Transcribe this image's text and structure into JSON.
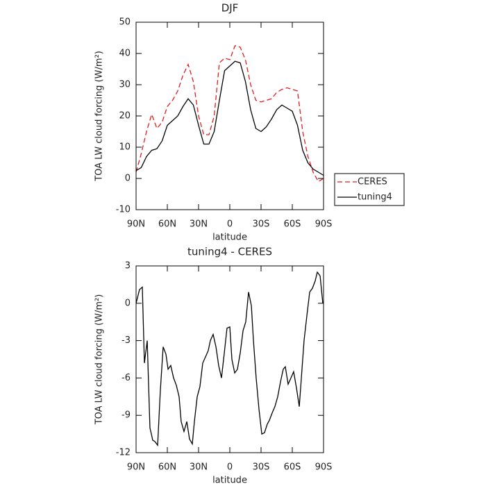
{
  "chart_data": [
    {
      "type": "line",
      "title": "DJF",
      "xlabel": "latitude",
      "ylabel": "TOA LW cloud forcing (W/m²)",
      "x": [
        90,
        85,
        80,
        75,
        70,
        65,
        60,
        55,
        50,
        45,
        40,
        35,
        30,
        25,
        20,
        15,
        10,
        5,
        0,
        -5,
        -10,
        -15,
        -20,
        -25,
        -30,
        -35,
        -40,
        -45,
        -50,
        -55,
        -60,
        -65,
        -70,
        -75,
        -80,
        -85,
        -90
      ],
      "series": [
        {
          "name": "CERES",
          "color": "#e31a1c",
          "style": "dashed",
          "values": [
            2,
            8,
            15,
            20.5,
            16,
            18,
            23,
            25,
            28,
            33,
            36.5,
            31,
            20,
            14,
            14,
            20,
            37,
            38.5,
            38,
            42.5,
            42,
            38,
            30,
            25,
            24.5,
            25,
            25.5,
            27.5,
            28.5,
            29,
            28.5,
            28,
            15,
            7,
            2,
            -1,
            0
          ]
        },
        {
          "name": "tuning4",
          "color": "#000000",
          "style": "solid",
          "values": [
            2.5,
            3.5,
            7,
            9,
            9.5,
            12,
            17,
            18.5,
            20,
            23,
            25.5,
            23.5,
            17,
            11,
            11,
            15,
            25,
            34.5,
            36,
            37.5,
            37,
            31,
            22,
            16,
            15,
            16.5,
            19,
            22,
            23.5,
            22.5,
            21.5,
            17,
            9,
            5,
            3,
            2,
            1
          ]
        }
      ],
      "xlim": [
        90,
        -90
      ],
      "xticks": [
        {
          "value": 90,
          "label": "90N"
        },
        {
          "value": 60,
          "label": "60N"
        },
        {
          "value": 30,
          "label": "30N"
        },
        0,
        {
          "value": -30,
          "label": "30S"
        },
        {
          "value": -60,
          "label": "60S"
        },
        {
          "value": -90,
          "label": "90S"
        }
      ],
      "ylim": [
        -10,
        50
      ],
      "yticks": [
        -10,
        0,
        10,
        20,
        30,
        40,
        50
      ],
      "legend": "outside-right"
    },
    {
      "type": "line",
      "title": "tuning4 - CERES",
      "xlabel": "latitude",
      "ylabel": "TOA LW cloud forcing (W/m²)",
      "x": [
        90,
        86.7,
        84,
        82,
        79.3,
        76.7,
        74,
        72,
        69.3,
        66.7,
        64,
        61.3,
        59.3,
        56.7,
        54,
        51.3,
        48.7,
        46.7,
        44,
        41.3,
        38.7,
        36,
        34,
        31.3,
        28.7,
        26,
        23.3,
        20.7,
        18.7,
        16,
        13.3,
        10.7,
        8,
        5.3,
        2.7,
        0,
        -2,
        -4.7,
        -7.3,
        -10,
        -12.7,
        -15.3,
        -18,
        -20.7,
        -22.7,
        -25.3,
        -28,
        -30.7,
        -33.3,
        -36,
        -38,
        -40.7,
        -43.3,
        -46,
        -48.7,
        -51.3,
        -53.3,
        -56,
        -58.7,
        -61.3,
        -64,
        -66.7,
        -68.7,
        -71.3,
        -74,
        -76.7,
        -79.3,
        -82,
        -84,
        -86.7,
        -89.3
      ],
      "values": [
        0,
        1.1,
        1.3,
        -4.8,
        -3,
        -10,
        -11,
        -11.1,
        -11.4,
        -7,
        -3.5,
        -4.1,
        -5.3,
        -5,
        -6,
        -6.6,
        -7.5,
        -9.5,
        -10.3,
        -9.5,
        -10.9,
        -11.3,
        -9.5,
        -7.5,
        -6.7,
        -4.8,
        -4.3,
        -3.8,
        -3,
        -2.5,
        -3.5,
        -5,
        -6,
        -4,
        -2,
        -1.9,
        -4.5,
        -5.6,
        -5.3,
        -4,
        -2.2,
        -1.5,
        0.9,
        -0.2,
        -3,
        -6,
        -8.5,
        -10.5,
        -10.4,
        -9.7,
        -9.4,
        -8.8,
        -8.3,
        -7.5,
        -6.3,
        -5.3,
        -5.1,
        -6.5,
        -6,
        -5.5,
        -6.8,
        -8.3,
        -6,
        -3,
        -1,
        0.9,
        1.2,
        1.8,
        2.5,
        2.2,
        0
      ],
      "color": "#000000",
      "style": "solid",
      "xlim": [
        90,
        -90
      ],
      "xticks": [
        {
          "value": 90,
          "label": "90N"
        },
        {
          "value": 60,
          "label": "60N"
        },
        {
          "value": 30,
          "label": "30N"
        },
        0,
        {
          "value": -30,
          "label": "30S"
        },
        {
          "value": -60,
          "label": "60S"
        },
        {
          "value": -90,
          "label": "90S"
        }
      ],
      "ylim": [
        -12,
        3
      ],
      "yticks": [
        -12,
        -9,
        -6,
        -3,
        0,
        3
      ]
    }
  ]
}
